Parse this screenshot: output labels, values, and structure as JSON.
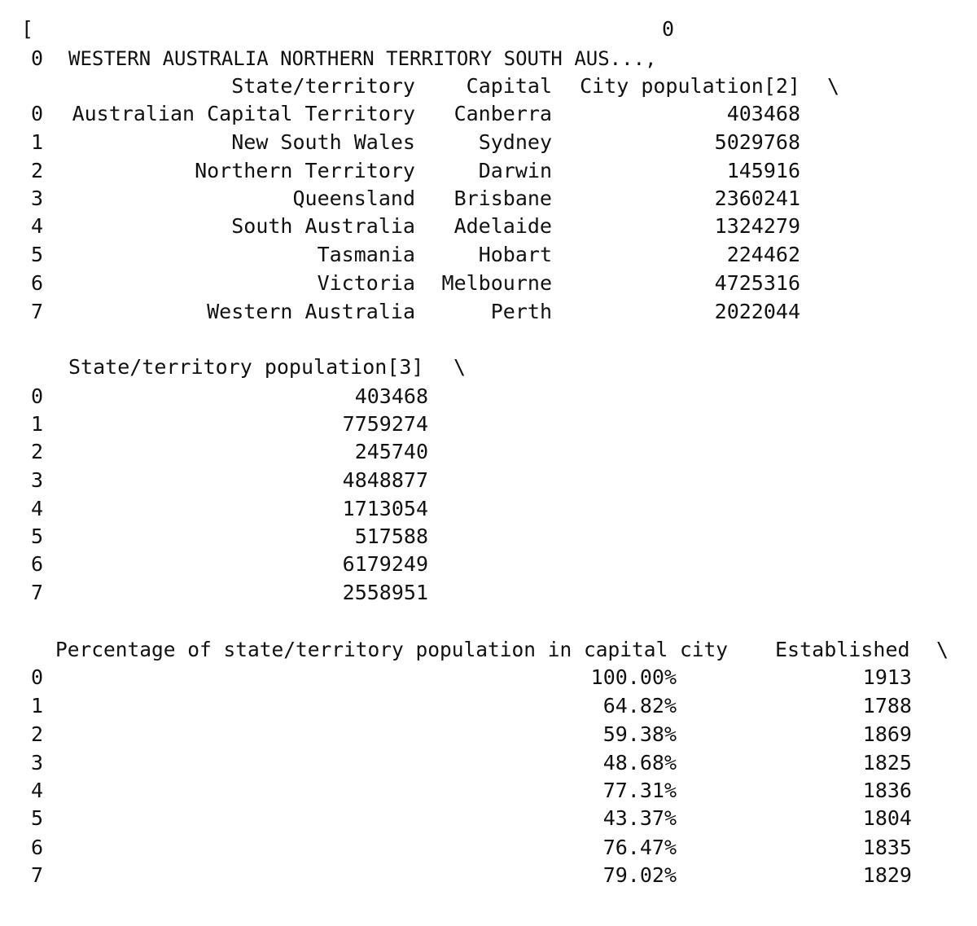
{
  "console": {
    "open_bracket": "[",
    "top_col": "0",
    "top_row_index": "0",
    "top_row_value": "WESTERN AUSTRALIA NORTHERN TERRITORY SOUTH AUS...,",
    "continuation": "\\"
  },
  "table1": {
    "headers": {
      "state": "State/territory",
      "capital": "Capital",
      "city_pop": "City population[2]"
    },
    "rows": [
      {
        "idx": "0",
        "state": "Australian Capital Territory",
        "capital": "Canberra",
        "city_pop": "403468"
      },
      {
        "idx": "1",
        "state": "New South Wales",
        "capital": "Sydney",
        "city_pop": "5029768"
      },
      {
        "idx": "2",
        "state": "Northern Territory",
        "capital": "Darwin",
        "city_pop": "145916"
      },
      {
        "idx": "3",
        "state": "Queensland",
        "capital": "Brisbane",
        "city_pop": "2360241"
      },
      {
        "idx": "4",
        "state": "South Australia",
        "capital": "Adelaide",
        "city_pop": "1324279"
      },
      {
        "idx": "5",
        "state": "Tasmania",
        "capital": "Hobart",
        "city_pop": "224462"
      },
      {
        "idx": "6",
        "state": "Victoria",
        "capital": "Melbourne",
        "city_pop": "4725316"
      },
      {
        "idx": "7",
        "state": "Western Australia",
        "capital": "Perth",
        "city_pop": "2022044"
      }
    ]
  },
  "table2": {
    "header": "State/territory population[3]",
    "rows": [
      {
        "idx": "0",
        "value": "403468"
      },
      {
        "idx": "1",
        "value": "7759274"
      },
      {
        "idx": "2",
        "value": "245740"
      },
      {
        "idx": "3",
        "value": "4848877"
      },
      {
        "idx": "4",
        "value": "1713054"
      },
      {
        "idx": "5",
        "value": "517588"
      },
      {
        "idx": "6",
        "value": "6179249"
      },
      {
        "idx": "7",
        "value": "2558951"
      }
    ]
  },
  "table3": {
    "headers": {
      "pct": "Percentage of state/territory population in capital city",
      "established": "Established"
    },
    "rows": [
      {
        "idx": "0",
        "pct": "100.00%",
        "established": "1913"
      },
      {
        "idx": "1",
        "pct": "64.82%",
        "established": "1788"
      },
      {
        "idx": "2",
        "pct": "59.38%",
        "established": "1869"
      },
      {
        "idx": "3",
        "pct": "48.68%",
        "established": "1825"
      },
      {
        "idx": "4",
        "pct": "77.31%",
        "established": "1836"
      },
      {
        "idx": "5",
        "pct": "43.37%",
        "established": "1804"
      },
      {
        "idx": "6",
        "pct": "76.47%",
        "established": "1835"
      },
      {
        "idx": "7",
        "pct": "79.02%",
        "established": "1829"
      }
    ]
  }
}
